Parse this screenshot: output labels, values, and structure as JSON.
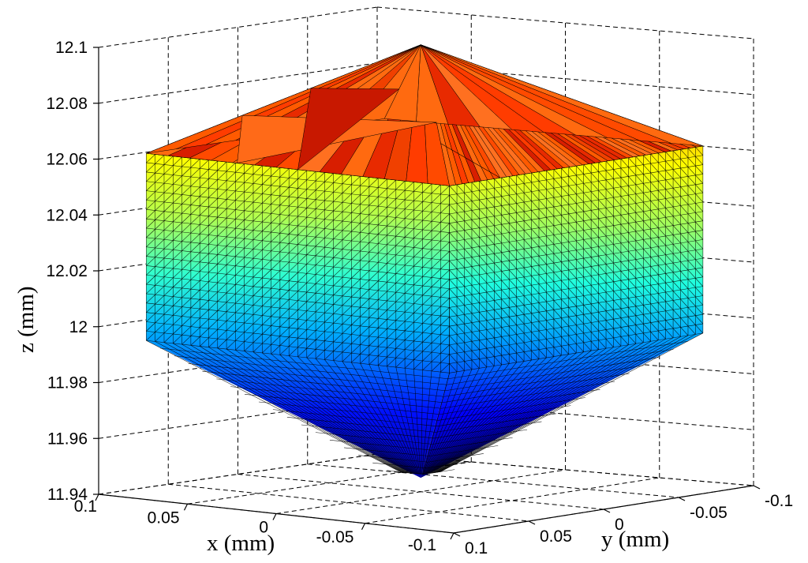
{
  "chart_data": {
    "type": "surface3d",
    "title": "",
    "xlabel": "x (mm)",
    "ylabel": "y (mm)",
    "zlabel": "z (mm)",
    "xlim": [
      -0.1,
      0.1
    ],
    "ylim": [
      -0.1,
      0.1
    ],
    "zlim": [
      11.94,
      12.1
    ],
    "x_ticks": [
      "0.1",
      "0.05",
      "0",
      "-0.05",
      "-0.1"
    ],
    "y_ticks": [
      "0.1",
      "0.05",
      "0",
      "-0.05",
      "-0.1"
    ],
    "z_ticks": [
      "12.1",
      "12.08",
      "12.06",
      "12.04",
      "12.02",
      "12",
      "11.98",
      "11.96",
      "11.94"
    ],
    "grid": true,
    "colormap": "jet",
    "shape": "cube-like solid with pyramidal top and rounded bottom, centered at (0,0), z from about 11.945 to 12.1"
  }
}
